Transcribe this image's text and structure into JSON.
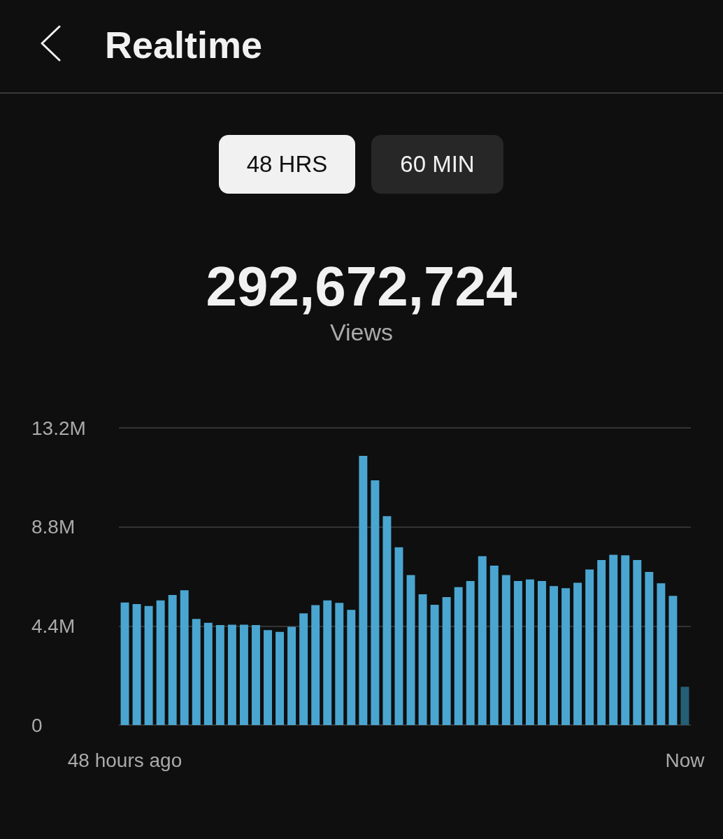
{
  "chart_data": {
    "type": "bar",
    "title": "Realtime",
    "annotations": [
      "48 HRS",
      "60 MIN",
      "292,672,724",
      "Views"
    ],
    "categories": [
      "48 hours ago",
      null,
      null,
      null,
      null,
      null,
      null,
      null,
      null,
      null,
      null,
      null,
      null,
      null,
      null,
      null,
      null,
      null,
      null,
      null,
      null,
      null,
      null,
      null,
      null,
      null,
      null,
      null,
      null,
      null,
      null,
      null,
      null,
      null,
      null,
      null,
      null,
      null,
      null,
      null,
      null,
      null,
      null,
      null,
      null,
      null,
      null,
      "Now"
    ],
    "values": [
      5.44,
      5.37,
      5.29,
      5.54,
      5.78,
      5.99,
      4.71,
      4.54,
      4.44,
      4.46,
      4.46,
      4.44,
      4.22,
      4.14,
      4.36,
      4.96,
      5.33,
      5.54,
      5.43,
      5.12,
      11.96,
      10.87,
      9.28,
      7.9,
      6.66,
      5.81,
      5.34,
      5.68,
      6.13,
      6.4,
      7.5,
      7.08,
      6.66,
      6.4,
      6.47,
      6.4,
      6.17,
      6.08,
      6.32,
      6.91,
      7.33,
      7.56,
      7.54,
      7.33,
      6.8,
      6.3,
      5.74,
      1.7
    ],
    "colors": [
      "#4aa6d1",
      "#4aa6d1",
      "#4aa6d1",
      "#4aa6d1",
      "#4aa6d1",
      "#4aa6d1",
      "#4aa6d1",
      "#4aa6d1",
      "#4aa6d1",
      "#4aa6d1",
      "#4aa6d1",
      "#4aa6d1",
      "#4aa6d1",
      "#4aa6d1",
      "#4aa6d1",
      "#4aa6d1",
      "#4aa6d1",
      "#4aa6d1",
      "#4aa6d1",
      "#4aa6d1",
      "#4aa6d1",
      "#4aa6d1",
      "#4aa6d1",
      "#4aa6d1",
      "#4aa6d1",
      "#4aa6d1",
      "#4aa6d1",
      "#4aa6d1",
      "#4aa6d1",
      "#4aa6d1",
      "#4aa6d1",
      "#4aa6d1",
      "#4aa6d1",
      "#4aa6d1",
      "#4aa6d1",
      "#4aa6d1",
      "#4aa6d1",
      "#4aa6d1",
      "#4aa6d1",
      "#4aa6d1",
      "#4aa6d1",
      "#4aa6d1",
      "#4aa6d1",
      "#4aa6d1",
      "#4aa6d1",
      "#4aa6d1",
      "#4aa6d1",
      "#245f75"
    ],
    "ylim": [
      0,
      13.2
    ],
    "yticks": [
      0,
      {
        "value": 4.4,
        "label": "4.4M"
      },
      {
        "value": 8.8,
        "label": "8.8M"
      },
      {
        "value": 13.2,
        "label": "13.2M"
      }
    ],
    "grid": "y"
  }
}
